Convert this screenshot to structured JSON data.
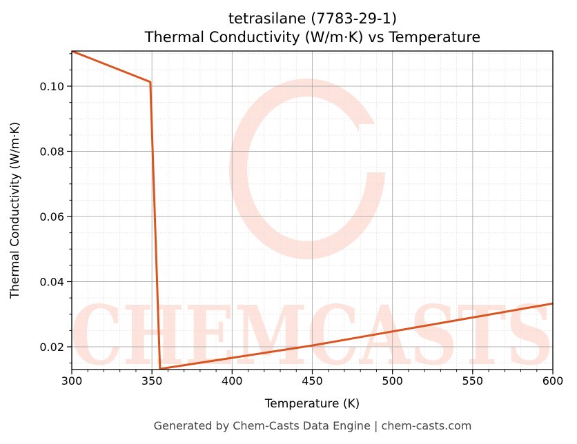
{
  "title": {
    "line1": "tetrasilane (7783-29-1)",
    "line2": "Thermal Conductivity (W/m·K) vs Temperature"
  },
  "footer": "Generated by Chem-Casts Data Engine | chem-casts.com",
  "watermark": "CHEMCASTS",
  "colors": {
    "line": "#d9541e",
    "watermark": "#fde3dc",
    "major_grid": "#b0b0b0",
    "minor_grid": "#e0e0e0",
    "axis": "#000000"
  },
  "chart_data": {
    "type": "line",
    "title": "tetrasilane (7783-29-1)\nThermal Conductivity (W/m·K) vs Temperature",
    "xlabel": "Temperature (K)",
    "ylabel": "Thermal Conductivity (W/m·K)",
    "xlim": [
      300,
      600
    ],
    "ylim": [
      0.013,
      0.111
    ],
    "xticks": [
      300,
      350,
      400,
      450,
      500,
      550,
      600
    ],
    "xtick_labels": [
      "300",
      "350",
      "400",
      "450",
      "500",
      "550",
      "600"
    ],
    "yticks": [
      0.02,
      0.04,
      0.06,
      0.08,
      0.1
    ],
    "ytick_labels": [
      "0.02",
      "0.04",
      "0.06",
      "0.08",
      "0.10"
    ],
    "x_minor_step": 10,
    "y_minor_step": 0.005,
    "grid": true,
    "legend": null,
    "series": [
      {
        "name": "Thermal Conductivity",
        "x": [
          300,
          349,
          355,
          450,
          600
        ],
        "y": [
          0.1108,
          0.1013,
          0.0132,
          0.0204,
          0.0333
        ]
      }
    ]
  }
}
